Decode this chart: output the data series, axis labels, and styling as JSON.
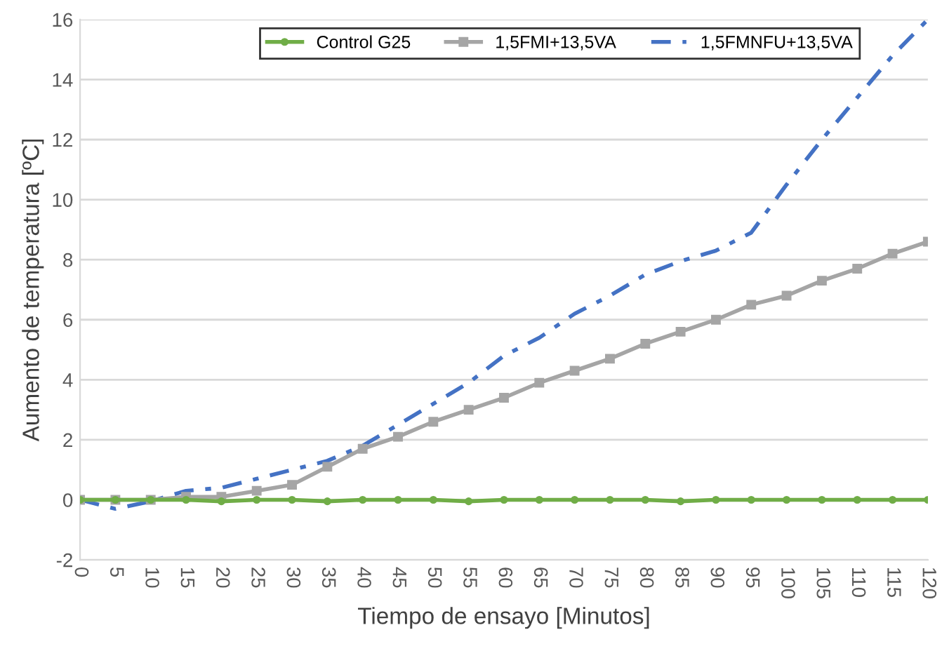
{
  "chart_data": {
    "type": "line",
    "xlabel": "Tiempo de ensayo [Minutos]",
    "ylabel": "Aumento de temperatura [ºC]",
    "x": [
      0,
      5,
      10,
      15,
      20,
      25,
      30,
      35,
      40,
      45,
      50,
      55,
      60,
      65,
      70,
      75,
      80,
      85,
      90,
      95,
      100,
      105,
      110,
      115,
      120
    ],
    "xlim": [
      0,
      120
    ],
    "xticks": [
      0,
      5,
      10,
      15,
      20,
      25,
      30,
      35,
      40,
      45,
      50,
      55,
      60,
      65,
      70,
      75,
      80,
      85,
      90,
      95,
      100,
      105,
      110,
      115,
      120
    ],
    "ylim": [
      -2,
      16
    ],
    "yticks": [
      -2,
      0,
      2,
      4,
      6,
      8,
      10,
      12,
      14,
      16
    ],
    "grid": "y",
    "legend": "top right",
    "series": [
      {
        "name": "Control G25",
        "color": "#70ad47",
        "marker": "circle",
        "line_style": "solid",
        "values": [
          0,
          0,
          0,
          0,
          -0.05,
          0,
          0,
          -0.05,
          0,
          0,
          0,
          -0.05,
          0,
          0,
          0,
          0,
          0,
          -0.05,
          0,
          0,
          0,
          0,
          0,
          0,
          0
        ]
      },
      {
        "name": "1,5FMI+13,5VA",
        "color": "#a5a5a5",
        "marker": "square",
        "line_style": "solid",
        "values": [
          0,
          0,
          0,
          0.1,
          0.1,
          0.3,
          0.5,
          1.1,
          1.7,
          2.1,
          2.6,
          3.0,
          3.4,
          3.9,
          4.3,
          4.7,
          5.2,
          5.6,
          6.0,
          6.5,
          6.8,
          7.3,
          7.7,
          8.2,
          8.6
        ]
      },
      {
        "name": "1,5FMNFU+13,5VA",
        "color": "#4472c4",
        "marker": "none",
        "line_style": "dashed",
        "values": [
          0,
          -0.3,
          -0.05,
          0.3,
          0.4,
          0.7,
          1.0,
          1.3,
          1.8,
          2.5,
          3.2,
          3.9,
          4.8,
          5.4,
          6.2,
          6.8,
          7.5,
          7.95,
          8.3,
          8.9,
          10.5,
          12.0,
          13.4,
          14.8,
          16.0
        ]
      }
    ]
  }
}
